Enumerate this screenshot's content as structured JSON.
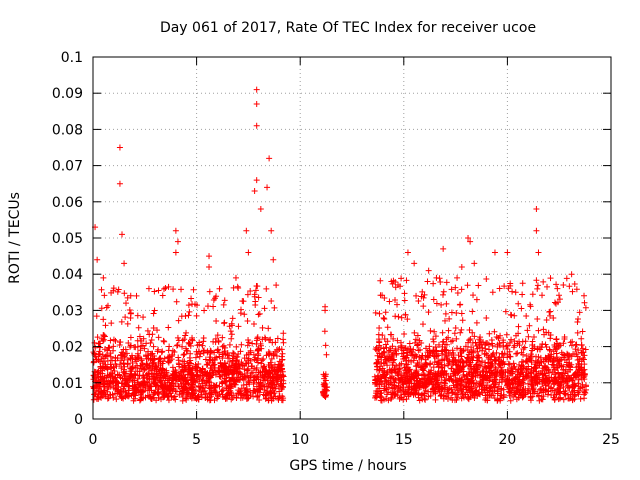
{
  "chart_data": {
    "type": "scatter",
    "title": "Day 061 of 2017, Rate Of TEC Index for receiver ucoe",
    "xlabel": "GPS time / hours",
    "ylabel": "ROTI / TECUs",
    "xlim": [
      0,
      25
    ],
    "ylim": [
      0,
      0.1
    ],
    "xticks": [
      0,
      5,
      10,
      15,
      20,
      25
    ],
    "xtick_labels": [
      "0",
      "5",
      "10",
      "15",
      "20",
      "25"
    ],
    "yticks": [
      0,
      0.01,
      0.02,
      0.03,
      0.04,
      0.05,
      0.06,
      0.07,
      0.08,
      0.09,
      0.1
    ],
    "ytick_labels": [
      "0",
      "0.01",
      "0.02",
      "0.03",
      "0.04",
      "0.05",
      "0.06",
      "0.07",
      "0.08",
      "0.09",
      "0.1"
    ],
    "grid": true,
    "marker": "+",
    "color": "#ff0000",
    "series": [
      {
        "name": "ROTI",
        "segments": [
          {
            "x_start": 0.0,
            "x_end": 9.2,
            "typical_low": 0.005,
            "typical_high": 0.025
          },
          {
            "x_start": 11.1,
            "x_end": 11.3,
            "typical_low": 0.006,
            "typical_high": 0.013
          },
          {
            "x_start": 13.6,
            "x_end": 23.8,
            "typical_low": 0.005,
            "typical_high": 0.027
          }
        ],
        "notable_points": [
          {
            "x": 0.1,
            "y": 0.053
          },
          {
            "x": 0.2,
            "y": 0.044
          },
          {
            "x": 0.5,
            "y": 0.039
          },
          {
            "x": 1.3,
            "y": 0.075
          },
          {
            "x": 1.3,
            "y": 0.065
          },
          {
            "x": 1.4,
            "y": 0.051
          },
          {
            "x": 1.5,
            "y": 0.043
          },
          {
            "x": 2.1,
            "y": 0.034
          },
          {
            "x": 2.7,
            "y": 0.036
          },
          {
            "x": 4.0,
            "y": 0.052
          },
          {
            "x": 4.0,
            "y": 0.046
          },
          {
            "x": 4.1,
            "y": 0.049
          },
          {
            "x": 5.6,
            "y": 0.045
          },
          {
            "x": 5.6,
            "y": 0.042
          },
          {
            "x": 6.9,
            "y": 0.039
          },
          {
            "x": 7.4,
            "y": 0.052
          },
          {
            "x": 7.5,
            "y": 0.046
          },
          {
            "x": 7.8,
            "y": 0.063
          },
          {
            "x": 7.9,
            "y": 0.066
          },
          {
            "x": 7.9,
            "y": 0.081
          },
          {
            "x": 7.9,
            "y": 0.087
          },
          {
            "x": 7.9,
            "y": 0.091
          },
          {
            "x": 8.1,
            "y": 0.058
          },
          {
            "x": 8.4,
            "y": 0.064
          },
          {
            "x": 8.5,
            "y": 0.072
          },
          {
            "x": 8.6,
            "y": 0.052
          },
          {
            "x": 8.7,
            "y": 0.044
          },
          {
            "x": 11.2,
            "y": 0.031
          },
          {
            "x": 11.2,
            "y": 0.03
          },
          {
            "x": 14.4,
            "y": 0.038
          },
          {
            "x": 15.2,
            "y": 0.046
          },
          {
            "x": 15.5,
            "y": 0.043
          },
          {
            "x": 16.2,
            "y": 0.041
          },
          {
            "x": 16.9,
            "y": 0.047
          },
          {
            "x": 17.8,
            "y": 0.042
          },
          {
            "x": 18.1,
            "y": 0.05
          },
          {
            "x": 18.2,
            "y": 0.049
          },
          {
            "x": 18.4,
            "y": 0.043
          },
          {
            "x": 19.4,
            "y": 0.046
          },
          {
            "x": 20.0,
            "y": 0.046
          },
          {
            "x": 20.4,
            "y": 0.035
          },
          {
            "x": 21.4,
            "y": 0.058
          },
          {
            "x": 21.4,
            "y": 0.052
          },
          {
            "x": 21.5,
            "y": 0.046
          },
          {
            "x": 22.7,
            "y": 0.037
          },
          {
            "x": 23.1,
            "y": 0.04
          }
        ]
      }
    ]
  }
}
